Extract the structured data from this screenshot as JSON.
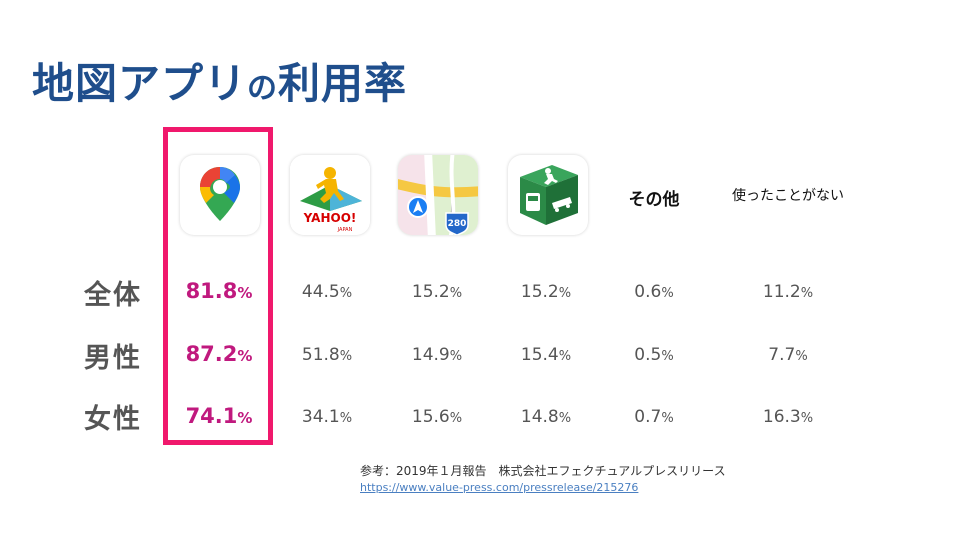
{
  "title_main": "地図アプリ",
  "title_particle": "の",
  "title_tail": "利用率",
  "columns": [
    {
      "kind": "icon",
      "icon": "google-maps-icon"
    },
    {
      "kind": "icon",
      "icon": "yahoo-map-icon",
      "logo_text": "YAHOO!",
      "logo_sub": "JAPAN"
    },
    {
      "kind": "icon",
      "icon": "apple-maps-icon",
      "route_sign": "280"
    },
    {
      "kind": "icon",
      "icon": "transit-navitime-icon"
    },
    {
      "kind": "text",
      "label": "その他"
    },
    {
      "kind": "text",
      "label": "使ったことがない"
    }
  ],
  "chart_data": {
    "type": "table",
    "categories": [
      "全体",
      "男性",
      "女性"
    ],
    "unit": "%",
    "series": [
      {
        "values": [
          81.8,
          87.2,
          74.1
        ]
      },
      {
        "values": [
          44.5,
          51.8,
          34.1
        ]
      },
      {
        "values": [
          15.2,
          14.9,
          15.6
        ]
      },
      {
        "values": [
          15.2,
          15.4,
          14.8
        ]
      },
      {
        "name": "その他",
        "values": [
          0.6,
          0.5,
          0.7
        ]
      },
      {
        "name": "使ったことがない",
        "values": [
          11.2,
          7.7,
          16.3
        ]
      }
    ],
    "highlight_series_index": 0
  },
  "rows": [
    {
      "label": "全体",
      "cells": [
        "81.8",
        "44.5",
        "15.2",
        "15.2",
        "0.6",
        "11.2"
      ]
    },
    {
      "label": "男性",
      "cells": [
        "87.2",
        "51.8",
        "14.9",
        "15.4",
        "0.5",
        "7.7"
      ]
    },
    {
      "label": "女性",
      "cells": [
        "74.1",
        "34.1",
        "15.6",
        "14.8",
        "0.7",
        "16.3"
      ]
    }
  ],
  "percent_sign": "%",
  "colors": {
    "title": "#1f4e8c",
    "highlight_border": "#f0186c",
    "highlight_text": "#c0197e",
    "body_text": "#555555",
    "link": "#4a7fc1"
  },
  "source_text": "参考：2019年１月報告　株式会社エフェクチュアルプレスリリース",
  "source_url": "https://www.value-press.com/pressrelease/215276"
}
